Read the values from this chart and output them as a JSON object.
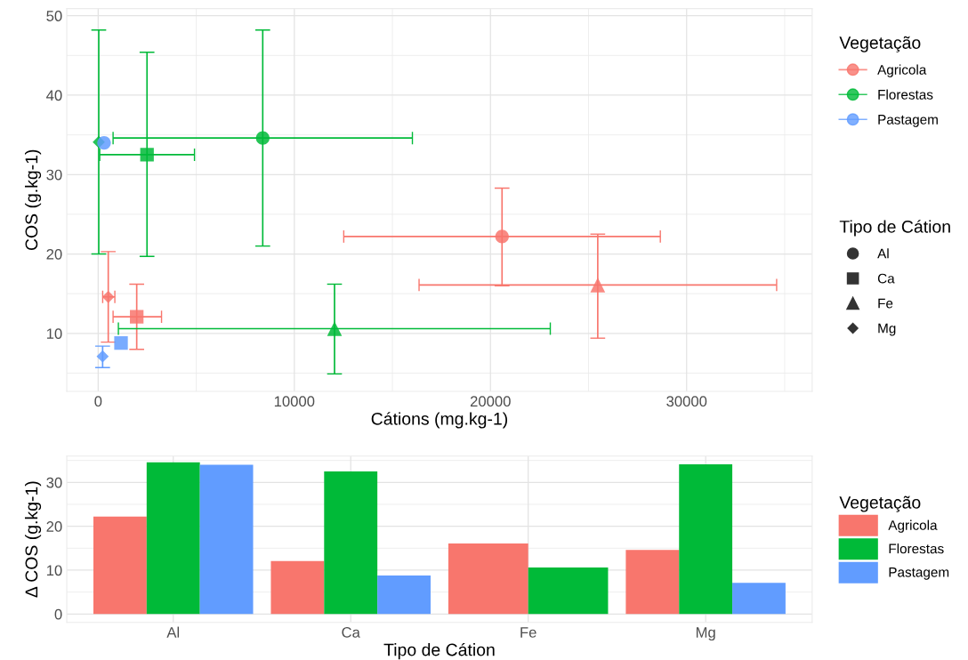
{
  "chart_data": [
    {
      "type": "scatter",
      "xlabel": "Cátions (mg.kg-1)",
      "ylabel": "COS (g.kg-1)",
      "legend_title": [
        "Vegetação",
        "Tipo de Cátion"
      ],
      "legend": "right",
      "grid": true,
      "annotations": [
        "Al",
        "Ca",
        "Fe",
        "Mg"
      ],
      "marker": [
        "circle",
        "square",
        "triangle",
        "diamond"
      ],
      "xlim": [
        -1600,
        36400
      ],
      "xticks": [
        0,
        10000,
        20000,
        30000
      ],
      "ylim": [
        2.7,
        50.9
      ],
      "yticks": [
        10,
        20,
        30,
        40,
        50
      ],
      "series": [
        {
          "name": "Agricola",
          "color": "#f8766d",
          "x": [
            20590,
            1965,
            25470,
            514
          ],
          "values": [
            22.2,
            12.1,
            16.1,
            14.6
          ],
          "errors": [
            [
              16.0,
              28.3
            ],
            [
              8.0,
              16.2
            ],
            [
              9.4,
              22.5
            ],
            [
              8.9,
              20.3
            ]
          ],
          "xerrors": [
            [
              12520,
              28660
            ],
            [
              760,
              3230
            ],
            [
              16360,
              34590
            ],
            [
              230,
              850
            ]
          ]
        },
        {
          "name": "Florestas",
          "color": "#00ba38",
          "x": [
            8390,
            2490,
            12050,
            30
          ],
          "values": [
            34.6,
            32.5,
            10.6,
            34.1
          ],
          "errors": [
            [
              21.0,
              48.2
            ],
            [
              19.7,
              45.4
            ],
            [
              4.9,
              16.2
            ],
            [
              20.0,
              48.2
            ]
          ],
          "xerrors": [
            [
              760,
              16020
            ],
            [
              80,
              4910
            ],
            [
              1030,
              23050
            ],
            null
          ]
        },
        {
          "name": "Pastagem",
          "color": "#619cff",
          "x": [
            300,
            1165,
            null,
            227
          ],
          "values": [
            34.0,
            8.8,
            null,
            7.1
          ],
          "errors": [
            null,
            null,
            null,
            [
              5.7,
              8.4
            ]
          ]
        }
      ]
    },
    {
      "type": "bar",
      "xlabel": "Tipo de Cátion",
      "ylabel": "Δ COS (g.kg-1)",
      "legend_title": "Vegetação",
      "legend": "right",
      "grid": true,
      "categories": [
        "Al",
        "Ca",
        "Fe",
        "Mg"
      ],
      "ylim": [
        -1.9,
        36.0
      ],
      "yticks": [
        0,
        10,
        20,
        30
      ],
      "series": [
        {
          "name": "Agricola",
          "color": "#f8766d",
          "values": [
            22.2,
            12.1,
            16.1,
            14.6
          ]
        },
        {
          "name": "Florestas",
          "color": "#00ba38",
          "values": [
            34.6,
            32.5,
            10.6,
            34.1
          ]
        },
        {
          "name": "Pastagem",
          "color": "#619cff",
          "values": [
            34.0,
            8.8,
            null,
            7.1
          ]
        }
      ]
    }
  ]
}
